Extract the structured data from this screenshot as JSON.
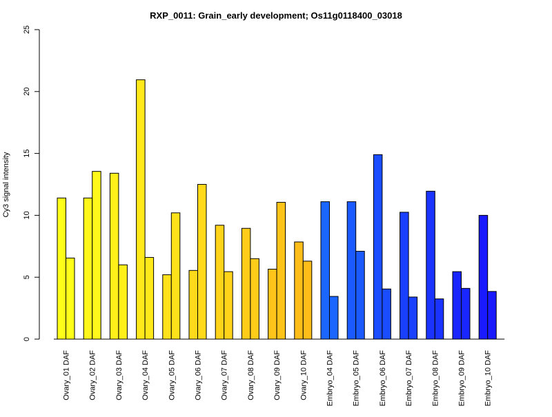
{
  "chart_data": {
    "type": "bar",
    "title": "RXP_0011: Grain_early development; Os11g0118400_03018",
    "xlabel": "",
    "ylabel": "Cy3 signal intensity",
    "ylim": [
      0,
      25
    ],
    "yticks": [
      0,
      5,
      10,
      15,
      20,
      25
    ],
    "categories": [
      "Ovary_01 DAF",
      "Ovary_02 DAF",
      "Ovary_03 DAF",
      "Ovary_04 DAF",
      "Ovary_05 DAF",
      "Ovary_06 DAF",
      "Ovary_07 DAF",
      "Ovary_08 DAF",
      "Ovary_09 DAF",
      "Ovary_10 DAF",
      "Embryo_04 DAF",
      "Embryo_05 DAF",
      "Embryo_06 DAF",
      "Embryo_07 DAF",
      "Embryo_08 DAF",
      "Embryo_09 DAF",
      "Embryo_10 DAF"
    ],
    "series": [
      {
        "values": [
          11.4,
          11.4,
          13.4,
          20.95,
          5.2,
          5.55,
          9.2,
          8.95,
          5.65,
          7.85,
          11.1,
          11.1,
          14.9,
          10.25,
          11.95,
          5.45,
          10.0
        ]
      },
      {
        "values": [
          6.55,
          13.55,
          6.0,
          6.6,
          10.2,
          12.5,
          5.45,
          6.5,
          11.05,
          6.3,
          3.45,
          7.1,
          4.05,
          3.4,
          3.25,
          4.1,
          3.85
        ]
      }
    ],
    "colors": [
      "#FFFF1A",
      "#FFF81A",
      "#FFF01A",
      "#FFE91A",
      "#FFE21A",
      "#FFDA1A",
      "#FFD31A",
      "#FFCC1A",
      "#FFC41A",
      "#FFBD1A",
      "#1A66FF",
      "#1A5AFF",
      "#1A4DFF",
      "#1A40FF",
      "#1A33FF",
      "#1A26FF",
      "#1A1AFF"
    ],
    "grid": false,
    "legend": "none"
  }
}
